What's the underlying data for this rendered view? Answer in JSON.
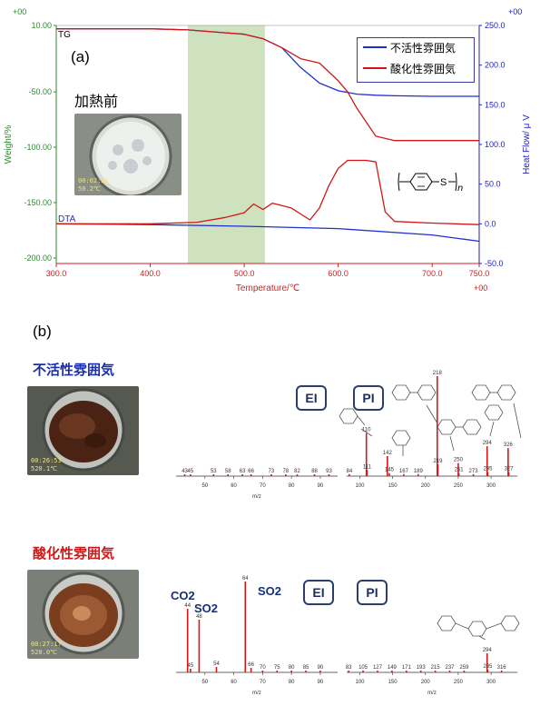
{
  "chart_data": [
    {
      "type": "line",
      "panel": "(a)",
      "xlabel": "Temperature/℃",
      "ylabel_left": "Weight/%",
      "ylabel_right": "Heat Flow/ μ V",
      "xlim": [
        300,
        750
      ],
      "ylim_left": [
        -205,
        10
      ],
      "ylim_right": [
        -50,
        250
      ],
      "x_ticks": [
        "300.0",
        "400.0",
        "500.0",
        "600.0",
        "700.0",
        "750.0"
      ],
      "y_left_ticks": [
        "10.00",
        "-50.00",
        "-100.00",
        "-150.00",
        "-200.00"
      ],
      "y_right_ticks": [
        "250.0",
        "200.0",
        "150.0",
        "100.0",
        "50.0",
        "0.0",
        "-50.0"
      ],
      "corner_labels": {
        "top_left": "+00",
        "top_right": "+00",
        "bottom_right": "+00"
      },
      "curve_labels": {
        "tg": "TG",
        "dta": "DTA"
      },
      "photo_caption": "加熱前",
      "photo_overlay": [
        "00:02:21",
        "50.2℃"
      ],
      "shaded_region": [
        440,
        522
      ],
      "structure_label": "n",
      "legend_position": "top-right",
      "series": [
        {
          "name": "不活性雰囲気",
          "color": "#1f2fd0",
          "curve": "TG",
          "axis": "left",
          "x": [
            300,
            400,
            440,
            500,
            520,
            540,
            560,
            580,
            600,
            620,
            640,
            660,
            700,
            750
          ],
          "y": [
            7,
            7,
            6,
            2,
            -2,
            -10,
            -28,
            -42,
            -49,
            -52,
            -53,
            -53.5,
            -54,
            -54
          ]
        },
        {
          "name": "酸化性雰囲気",
          "color": "#d01818",
          "curve": "TG",
          "axis": "left",
          "x": [
            300,
            400,
            440,
            500,
            520,
            540,
            560,
            580,
            600,
            610,
            620,
            640,
            660,
            700,
            750
          ],
          "y": [
            7,
            7,
            6,
            2,
            -2,
            -10,
            -20,
            -24,
            -40,
            -50,
            -65,
            -90,
            -94,
            -94,
            -94
          ]
        },
        {
          "name": "不活性雰囲気",
          "color": "#1f2fd0",
          "curve": "DTA",
          "axis": "right",
          "x": [
            300,
            400,
            500,
            600,
            700,
            750
          ],
          "y": [
            0,
            -1,
            -3,
            -6,
            -14,
            -22
          ]
        },
        {
          "name": "酸化性雰囲気",
          "color": "#d01818",
          "curve": "DTA",
          "axis": "right",
          "x": [
            300,
            400,
            450,
            480,
            500,
            510,
            520,
            530,
            550,
            570,
            580,
            590,
            600,
            610,
            630,
            640,
            650,
            660,
            700,
            750
          ],
          "y": [
            0,
            0,
            2,
            8,
            14,
            25,
            18,
            26,
            20,
            5,
            20,
            48,
            70,
            80,
            80,
            78,
            15,
            3,
            1,
            -1
          ]
        }
      ]
    },
    {
      "type": "bar",
      "panel": "(b) 不活性雰囲気 EI",
      "xlabel": "m/z",
      "x_ticks": [
        50,
        60,
        70,
        80,
        90
      ],
      "xlim": [
        40,
        96
      ],
      "peaks": [
        {
          "mz": 43,
          "label": "43"
        },
        {
          "mz": 45,
          "label": "45"
        },
        {
          "mz": 53,
          "label": "53"
        },
        {
          "mz": 58,
          "label": "58"
        },
        {
          "mz": 63,
          "label": "63"
        },
        {
          "mz": 66,
          "label": "66"
        },
        {
          "mz": 73,
          "label": "73"
        },
        {
          "mz": 78,
          "label": "78"
        },
        {
          "mz": 82,
          "label": "82"
        },
        {
          "mz": 88,
          "label": "88"
        },
        {
          "mz": 93,
          "label": "93"
        }
      ]
    },
    {
      "type": "bar",
      "panel": "(b) 不活性雰囲気 PI",
      "xlabel": "",
      "x_ticks": [
        100,
        150,
        200,
        250,
        300
      ],
      "xlim": [
        80,
        340
      ],
      "peaks": [
        {
          "mz": 84,
          "rel": 0.02,
          "label": "84"
        },
        {
          "mz": 110,
          "rel": 0.43,
          "label": "110"
        },
        {
          "mz": 111,
          "rel": 0.06,
          "label": "111"
        },
        {
          "mz": 142,
          "rel": 0.2,
          "label": "142"
        },
        {
          "mz": 145,
          "rel": 0.03,
          "label": "145"
        },
        {
          "mz": 167,
          "rel": 0.02,
          "label": "167"
        },
        {
          "mz": 189,
          "rel": 0.02,
          "label": "189"
        },
        {
          "mz": 218,
          "rel": 1.0,
          "label": "218"
        },
        {
          "mz": 219,
          "rel": 0.12,
          "label": "219"
        },
        {
          "mz": 250,
          "rel": 0.13,
          "label": "250"
        },
        {
          "mz": 251,
          "rel": 0.03,
          "label": "251"
        },
        {
          "mz": 273,
          "rel": 0.02,
          "label": "273"
        },
        {
          "mz": 294,
          "rel": 0.3,
          "label": "294"
        },
        {
          "mz": 295,
          "rel": 0.04,
          "label": "295"
        },
        {
          "mz": 326,
          "rel": 0.28,
          "label": "326"
        },
        {
          "mz": 327,
          "rel": 0.04,
          "label": "327"
        }
      ]
    },
    {
      "type": "bar",
      "panel": "(b) 酸化性雰囲気 EI",
      "xlabel": "m/z",
      "x_ticks": [
        50,
        60,
        70,
        80,
        90
      ],
      "xlim": [
        40,
        96
      ],
      "peaks": [
        {
          "mz": 44,
          "rel": 0.7,
          "label": "44"
        },
        {
          "mz": 45,
          "rel": 0.04,
          "label": "45"
        },
        {
          "mz": 48,
          "rel": 0.58,
          "label": "48"
        },
        {
          "mz": 54,
          "rel": 0.06,
          "label": "54"
        },
        {
          "mz": 64,
          "rel": 1.0,
          "label": "64"
        },
        {
          "mz": 66,
          "rel": 0.05,
          "label": "66"
        },
        {
          "mz": 70,
          "label": "70"
        },
        {
          "mz": 75,
          "label": "75"
        },
        {
          "mz": 80,
          "label": "80"
        },
        {
          "mz": 85,
          "label": "85"
        },
        {
          "mz": 90,
          "label": "90"
        }
      ]
    },
    {
      "type": "bar",
      "panel": "(b) 酸化性雰囲気 PI",
      "xlabel": "m/z",
      "x_ticks": [
        100,
        150,
        200,
        250,
        300
      ],
      "xlim": [
        80,
        340
      ],
      "peaks": [
        {
          "mz": 83,
          "label": "83"
        },
        {
          "mz": 105,
          "label": "105"
        },
        {
          "mz": 127,
          "label": "127"
        },
        {
          "mz": 149,
          "label": "149"
        },
        {
          "mz": 171,
          "label": "171"
        },
        {
          "mz": 193,
          "label": "193"
        },
        {
          "mz": 215,
          "label": "215"
        },
        {
          "mz": 237,
          "label": "237"
        },
        {
          "mz": 259,
          "label": "259"
        },
        {
          "mz": 294,
          "rel": 0.35,
          "label": "294"
        },
        {
          "mz": 295,
          "rel": 0.05,
          "label": "295"
        },
        {
          "mz": 316,
          "label": "316"
        }
      ]
    }
  ],
  "panel_b": {
    "label": "(b)",
    "inert": {
      "title": "不活性雰囲気",
      "title_color": "#1a2fb0",
      "photo_overlay": [
        "00:26:53",
        "520.1℃"
      ],
      "badges": [
        "EI",
        "PI"
      ]
    },
    "oxidative": {
      "title": "酸化性雰囲気",
      "title_color": "#d01818",
      "photo_overlay": [
        "00:27:17",
        "520.0℃"
      ],
      "badges": [
        "EI",
        "PI"
      ],
      "molecule_labels": [
        "CO2",
        "SO2",
        "SO2"
      ]
    }
  }
}
